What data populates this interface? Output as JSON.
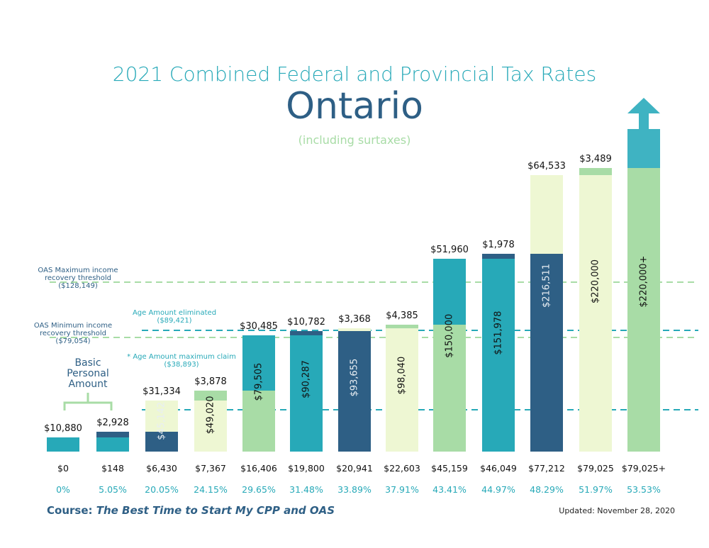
{
  "header": {
    "title": "2021 Combined Federal and Provincial Tax Rates",
    "province": "Ontario",
    "subtitle": "(including surtaxes)"
  },
  "colors": {
    "teal": "#27a9b8",
    "navy": "#2e5f85",
    "light_yellow": "#eef7d3",
    "light_green": "#a8dca6",
    "arrow": "#3fb3c2"
  },
  "chart_data": {
    "type": "bar",
    "stacked": true,
    "bars": [
      {
        "segments": [
          {
            "from": 0,
            "to": 10880,
            "color": "teal"
          }
        ],
        "top_label": "$10,880",
        "inner_label": "",
        "tax": "$0",
        "rate": "0%"
      },
      {
        "segments": [
          {
            "from": 0,
            "to": 10880,
            "color": "teal"
          },
          {
            "from": 10880,
            "to": 13808,
            "color": "navy"
          }
        ],
        "top_label": "$2,928",
        "inner_label": "",
        "tax": "$148",
        "rate": "5.05%"
      },
      {
        "segments": [
          {
            "from": 0,
            "to": 13808,
            "color": "navy"
          },
          {
            "from": 13808,
            "to": 45142,
            "color": "light_yellow"
          }
        ],
        "top_label": "$31,334",
        "inner_label": "$45,142",
        "tax": "$6,430",
        "rate": "20.05%"
      },
      {
        "segments": [
          {
            "from": 0,
            "to": 45142,
            "color": "light_yellow"
          },
          {
            "from": 45142,
            "to": 49020,
            "color": "light_green"
          }
        ],
        "top_label": "$3,878",
        "inner_label": "$49,020",
        "tax": "$7,367",
        "rate": "24.15%"
      },
      {
        "segments": [
          {
            "from": 0,
            "to": 49020,
            "color": "light_green"
          },
          {
            "from": 49020,
            "to": 79505,
            "color": "teal"
          }
        ],
        "top_label": "$30,485",
        "inner_label": "$79,505",
        "tax": "$16,406",
        "rate": "29.65%"
      },
      {
        "segments": [
          {
            "from": 0,
            "to": 79505,
            "color": "teal"
          },
          {
            "from": 79505,
            "to": 90287,
            "color": "navy"
          }
        ],
        "top_label": "$10,782",
        "inner_label": "$90,287",
        "tax": "$19,800",
        "rate": "31.48%"
      },
      {
        "segments": [
          {
            "from": 0,
            "to": 90287,
            "color": "navy"
          },
          {
            "from": 90287,
            "to": 93655,
            "color": "light_yellow"
          }
        ],
        "top_label": "$3,368",
        "inner_label": "$93,655",
        "tax": "$20,941",
        "rate": "33.89%"
      },
      {
        "segments": [
          {
            "from": 0,
            "to": 93655,
            "color": "light_yellow"
          },
          {
            "from": 93655,
            "to": 98040,
            "color": "light_green"
          }
        ],
        "top_label": "$4,385",
        "inner_label": "$98,040",
        "tax": "$22,603",
        "rate": "37.91%"
      },
      {
        "segments": [
          {
            "from": 0,
            "to": 98040,
            "color": "light_green"
          },
          {
            "from": 98040,
            "to": 150000,
            "color": "teal"
          }
        ],
        "top_label": "$51,960",
        "inner_label": "$150,000",
        "tax": "$45,159",
        "rate": "43.41%"
      },
      {
        "segments": [
          {
            "from": 0,
            "to": 150000,
            "color": "teal"
          },
          {
            "from": 150000,
            "to": 151978,
            "color": "navy"
          }
        ],
        "top_label": "$1,978",
        "inner_label": "$151,978",
        "tax": "$46,049",
        "rate": "44.97%"
      },
      {
        "segments": [
          {
            "from": 0,
            "to": 151978,
            "color": "navy"
          },
          {
            "from": 151978,
            "to": 216511,
            "color": "light_yellow"
          }
        ],
        "top_label": "$64,533",
        "inner_label": "$216,511",
        "tax": "$77,212",
        "rate": "48.29%"
      },
      {
        "segments": [
          {
            "from": 0,
            "to": 216511,
            "color": "light_yellow"
          },
          {
            "from": 216511,
            "to": 220000,
            "color": "light_green"
          }
        ],
        "top_label": "$3,489",
        "inner_label": "$220,000",
        "tax": "$79,025",
        "rate": "51.97%"
      },
      {
        "segments": [
          {
            "from": 0,
            "to": 220000,
            "color": "light_green"
          }
        ],
        "open_ended": true,
        "top_label": "",
        "inner_label": "$220,000+",
        "tax": "$79,025+",
        "rate": "53.53%"
      }
    ],
    "reference_lines": [
      {
        "value": 128149,
        "color": "light_green",
        "label": [
          "OAS Maximum income",
          "recovery threshold",
          "($128,149)"
        ],
        "label_color": "navy"
      },
      {
        "value": 89421,
        "color": "teal",
        "label": [
          "Age Amount eliminated",
          "($89,421)"
        ],
        "label_color": "teal"
      },
      {
        "value": 79054,
        "color": "light_green",
        "label": [
          "OAS Minimum income",
          "recovery threshold",
          "($79,054)"
        ],
        "label_color": "navy"
      },
      {
        "value": 38893,
        "color": "teal",
        "label": [
          "* Age Amount maximum claim",
          "($38,893)"
        ],
        "label_color": "teal"
      }
    ],
    "bracket_annotation": [
      "Basic",
      "Personal",
      "Amount"
    ]
  },
  "footer": {
    "course_prefix": "Course: ",
    "course_title": "The Best Time to Start My CPP and OAS",
    "updated": "Updated: November 28, 2020"
  }
}
